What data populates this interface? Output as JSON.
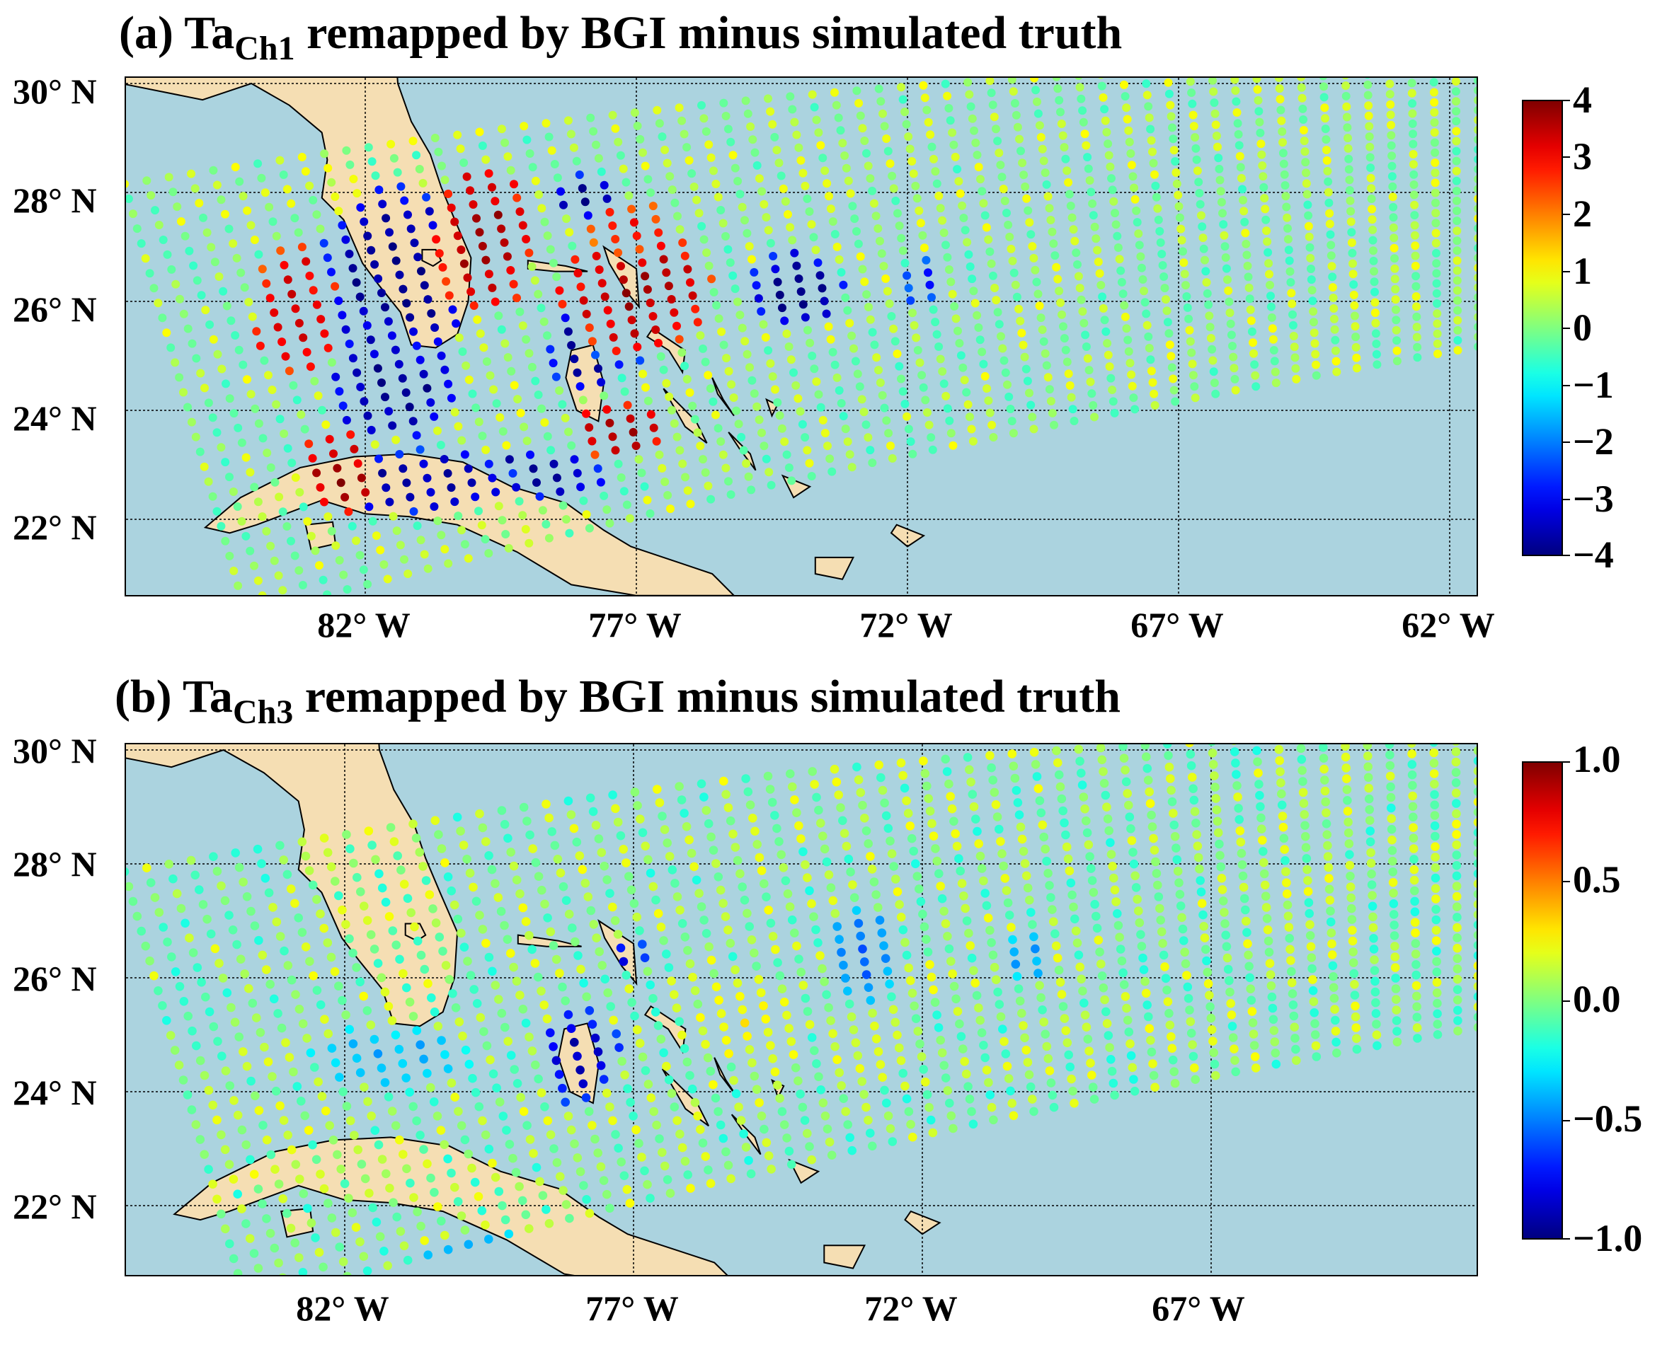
{
  "colors": {
    "ocean": "#abd3df",
    "land": "#f5deb3",
    "coast": "#000000",
    "colormap": "jet"
  },
  "panels": [
    {
      "id": "a",
      "title_main": "(a) Ta",
      "title_sub": "Ch1",
      "title_rest": " remapped by BGI minus simulated truth",
      "lat_labels": [
        "30° N",
        "28° N",
        "26° N",
        "24° N",
        "22° N"
      ],
      "lon_labels": [
        "82° W",
        "77° W",
        "72° W",
        "67° W",
        "62° W"
      ],
      "colorbar_ticks": [
        "4",
        "3",
        "2",
        "1",
        "0",
        "−1",
        "−2",
        "−3",
        "−4"
      ],
      "colorbar_range": [
        -4,
        4
      ]
    },
    {
      "id": "b",
      "title_main": "(b) Ta",
      "title_sub": "Ch3",
      "title_rest": " remapped by BGI minus simulated truth",
      "lat_labels": [
        "30° N",
        "28° N",
        "26° N",
        "24° N",
        "22° N"
      ],
      "lon_labels": [
        "82° W",
        "77° W",
        "72° W",
        "67° W"
      ],
      "colorbar_ticks": [
        "1.0",
        "0.5",
        "0.0",
        "−0.5",
        "−1.0"
      ],
      "colorbar_range": [
        -1,
        1
      ]
    }
  ]
}
